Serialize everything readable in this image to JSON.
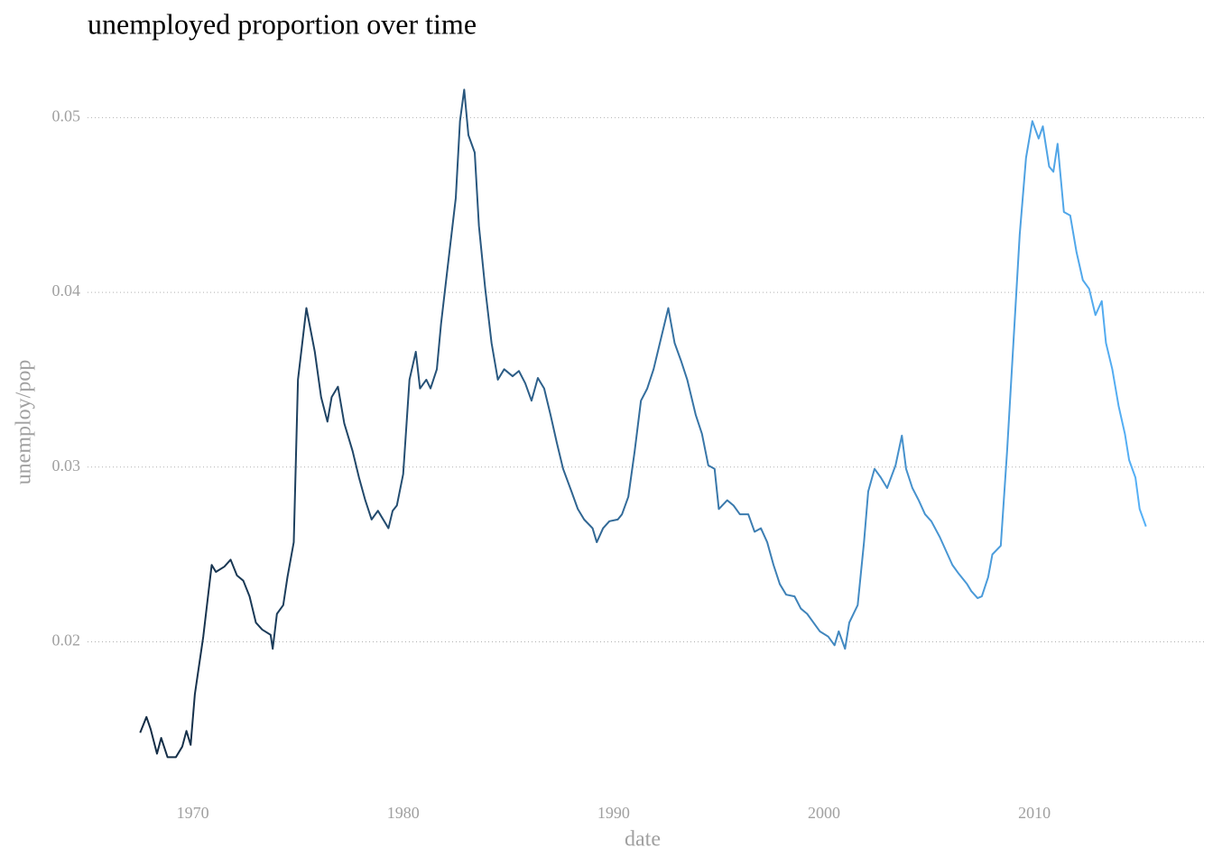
{
  "chart_data": {
    "type": "line",
    "title": "unemployed proportion over time",
    "x_label": "date",
    "y_label": "unemploy/pop",
    "x": [
      1967.5,
      1967.8,
      1968.0,
      1968.3,
      1968.5,
      1968.8,
      1969.2,
      1969.5,
      1969.7,
      1969.9,
      1970.1,
      1970.5,
      1970.9,
      1971.1,
      1971.5,
      1971.8,
      1972.1,
      1972.4,
      1972.7,
      1973.0,
      1973.3,
      1973.7,
      1973.8,
      1974.0,
      1974.3,
      1974.5,
      1974.8,
      1975.0,
      1975.4,
      1975.8,
      1976.1,
      1976.4,
      1976.6,
      1976.9,
      1977.2,
      1977.6,
      1977.9,
      1978.2,
      1978.5,
      1978.8,
      1979.3,
      1979.5,
      1979.7,
      1980.0,
      1980.3,
      1980.6,
      1980.8,
      1981.1,
      1981.3,
      1981.6,
      1981.8,
      1982.1,
      1982.5,
      1982.7,
      1982.9,
      1983.1,
      1983.4,
      1983.6,
      1983.9,
      1984.2,
      1984.5,
      1984.8,
      1985.2,
      1985.5,
      1985.8,
      1986.1,
      1986.4,
      1986.7,
      1987.0,
      1987.3,
      1987.6,
      1988.0,
      1988.3,
      1988.6,
      1989.0,
      1989.2,
      1989.5,
      1989.8,
      1990.2,
      1990.4,
      1990.7,
      1991.0,
      1991.3,
      1991.6,
      1991.9,
      1992.2,
      1992.6,
      1992.9,
      1993.2,
      1993.5,
      1993.9,
      1994.2,
      1994.5,
      1994.8,
      1995.0,
      1995.4,
      1995.7,
      1996.0,
      1996.4,
      1996.7,
      1997.0,
      1997.3,
      1997.6,
      1997.9,
      1998.2,
      1998.6,
      1998.9,
      1999.2,
      1999.5,
      1999.8,
      2000.2,
      2000.5,
      2000.7,
      2001.0,
      2001.2,
      2001.6,
      2001.9,
      2002.1,
      2002.4,
      2002.7,
      2003.0,
      2003.4,
      2003.7,
      2003.9,
      2004.2,
      2004.5,
      2004.8,
      2005.1,
      2005.5,
      2005.8,
      2006.1,
      2006.4,
      2006.8,
      2007.0,
      2007.3,
      2007.5,
      2007.8,
      2008.0,
      2008.4,
      2008.7,
      2009.0,
      2009.3,
      2009.6,
      2009.9,
      2010.2,
      2010.4,
      2010.7,
      2010.9,
      2011.1,
      2011.4,
      2011.7,
      2012.0,
      2012.3,
      2012.6,
      2012.9,
      2013.2,
      2013.4,
      2013.7,
      2014.0,
      2014.3,
      2014.5,
      2014.8,
      2015.0,
      2015.3
    ],
    "values": [
      0.0148,
      0.0157,
      0.015,
      0.0136,
      0.0145,
      0.0134,
      0.0134,
      0.014,
      0.0149,
      0.0141,
      0.017,
      0.0203,
      0.0244,
      0.024,
      0.0243,
      0.0247,
      0.0238,
      0.0235,
      0.0226,
      0.0211,
      0.0207,
      0.0204,
      0.0196,
      0.0216,
      0.0221,
      0.0237,
      0.0257,
      0.035,
      0.0391,
      0.0366,
      0.034,
      0.0326,
      0.034,
      0.0346,
      0.0325,
      0.0309,
      0.0294,
      0.0281,
      0.027,
      0.0275,
      0.0265,
      0.0275,
      0.0278,
      0.0296,
      0.035,
      0.0366,
      0.0345,
      0.035,
      0.0345,
      0.0356,
      0.0382,
      0.0413,
      0.0454,
      0.0498,
      0.0516,
      0.049,
      0.048,
      0.0438,
      0.0402,
      0.0371,
      0.035,
      0.0356,
      0.0352,
      0.0355,
      0.0348,
      0.0338,
      0.0351,
      0.0345,
      0.033,
      0.0314,
      0.0299,
      0.0286,
      0.0276,
      0.027,
      0.0265,
      0.0257,
      0.0265,
      0.0269,
      0.027,
      0.0273,
      0.0283,
      0.0309,
      0.0338,
      0.0345,
      0.0356,
      0.0371,
      0.0391,
      0.0371,
      0.0361,
      0.035,
      0.033,
      0.0319,
      0.0301,
      0.0299,
      0.0276,
      0.0281,
      0.0278,
      0.0273,
      0.0273,
      0.0263,
      0.0265,
      0.0257,
      0.0244,
      0.0233,
      0.0227,
      0.0226,
      0.0219,
      0.0216,
      0.0211,
      0.0206,
      0.0203,
      0.0198,
      0.0206,
      0.0196,
      0.0211,
      0.0221,
      0.0257,
      0.0286,
      0.0299,
      0.0294,
      0.0288,
      0.0301,
      0.0318,
      0.0299,
      0.0288,
      0.0281,
      0.0273,
      0.0269,
      0.026,
      0.0252,
      0.0244,
      0.0239,
      0.0233,
      0.0229,
      0.0225,
      0.0226,
      0.0237,
      0.025,
      0.0255,
      0.0309,
      0.0371,
      0.0433,
      0.0477,
      0.0498,
      0.0488,
      0.0495,
      0.0472,
      0.0469,
      0.0485,
      0.0446,
      0.0444,
      0.0423,
      0.0407,
      0.0402,
      0.0387,
      0.0395,
      0.0371,
      0.0356,
      0.0335,
      0.0319,
      0.0304,
      0.0294,
      0.0276,
      0.0266
    ],
    "colors": [
      "#132B43",
      "#56B1F7"
    ],
    "xlim": [
      1965,
      2018.1
    ],
    "ylim": [
      0.0113,
      0.0526
    ],
    "xticks": [
      1970,
      1980,
      1990,
      2000,
      2010
    ],
    "yticks": [
      0.02,
      0.03,
      0.04,
      0.05
    ],
    "grid": true
  }
}
